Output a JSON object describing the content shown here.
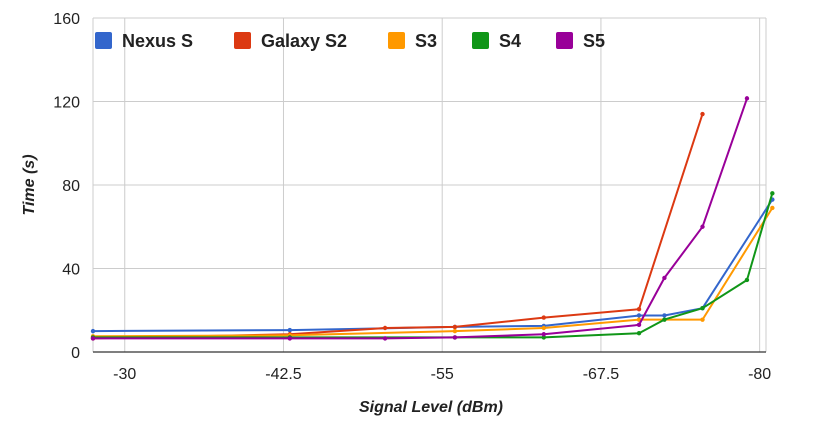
{
  "chart_data": {
    "type": "line",
    "xlabel": "Signal Level (dBm)",
    "ylabel": "Time (s)",
    "x_ticks": [
      "-30",
      "-42.5",
      "-55",
      "-67.5",
      "-80"
    ],
    "x_tick_values": [
      -30,
      -42.5,
      -55,
      -67.5,
      -80
    ],
    "y_ticks": [
      "0",
      "40",
      "80",
      "120",
      "160"
    ],
    "y_tick_values": [
      0,
      40,
      80,
      120,
      160
    ],
    "xlim": [
      -27.5,
      -80.5
    ],
    "ylim": [
      0,
      160
    ],
    "x_reversed": true,
    "grid": true,
    "legend_position": "top",
    "series": [
      {
        "name": "Nexus S",
        "color": "#3366cc",
        "points": [
          [
            -27.5,
            10
          ],
          [
            -43,
            10.5
          ],
          [
            -56,
            12
          ],
          [
            -63,
            12.5
          ],
          [
            -70.5,
            17.5
          ],
          [
            -72.5,
            17.5
          ],
          [
            -75.5,
            21
          ],
          [
            -81,
            73
          ]
        ]
      },
      {
        "name": "Galaxy S2",
        "color": "#dc3912",
        "points": [
          [
            -27.5,
            6.5
          ],
          [
            -43,
            8.5
          ],
          [
            -50.5,
            11.5
          ],
          [
            -56,
            12
          ],
          [
            -63,
            16.5
          ],
          [
            -70.5,
            20.5
          ],
          [
            -75.5,
            114
          ]
        ]
      },
      {
        "name": "S3",
        "color": "#ff9900",
        "points": [
          [
            -27.5,
            7.5
          ],
          [
            -43,
            8
          ],
          [
            -56,
            10
          ],
          [
            -63,
            11.5
          ],
          [
            -70.5,
            15.5
          ],
          [
            -75.5,
            15.5
          ],
          [
            -81,
            69
          ]
        ]
      },
      {
        "name": "S4",
        "color": "#109618",
        "points": [
          [
            -27.5,
            7
          ],
          [
            -43,
            7
          ],
          [
            -56,
            7
          ],
          [
            -63,
            7
          ],
          [
            -70.5,
            9
          ],
          [
            -72.5,
            15.5
          ],
          [
            -75.5,
            21
          ],
          [
            -79,
            34.5
          ],
          [
            -81,
            76
          ]
        ]
      },
      {
        "name": "S5",
        "color": "#990099",
        "points": [
          [
            -27.5,
            6.5
          ],
          [
            -43,
            6.5
          ],
          [
            -50.5,
            6.5
          ],
          [
            -56,
            7
          ],
          [
            -63,
            8.5
          ],
          [
            -70.5,
            13
          ],
          [
            -72.5,
            35.5
          ],
          [
            -75.5,
            60
          ],
          [
            -79,
            121.5
          ]
        ]
      }
    ]
  }
}
